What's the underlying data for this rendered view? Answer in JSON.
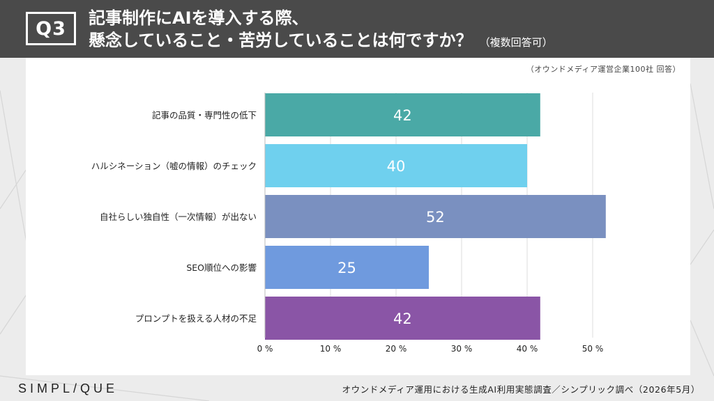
{
  "header": {
    "badge": "Q3",
    "title_line1": "記事制作にAIを導入する際、",
    "title_line2": "懸念していること・苦労していることは何ですか？",
    "note": "（複数回答可）"
  },
  "respondents": "（オウンドメディア運営企業100社 回答）",
  "chart_data": {
    "type": "bar",
    "orientation": "horizontal",
    "categories": [
      "記事の品質・専門性の低下",
      "ハルシネーション（嘘の情報）のチェック",
      "自社らしい独自性（一次情報）が出ない",
      "SEO順位への影響",
      "プロンプトを扱える人材の不足"
    ],
    "values": [
      42,
      40,
      52,
      25,
      42
    ],
    "value_labels": [
      "42",
      "40",
      "52",
      "25",
      "42"
    ],
    "bar_colors": [
      "#4aa9a6",
      "#6fd0ee",
      "#7a90c0",
      "#6f9ade",
      "#8a55a6"
    ],
    "xlim": [
      0,
      50
    ],
    "x_ticks": [
      0,
      10,
      20,
      30,
      40,
      50
    ],
    "x_tick_labels": [
      "0 %",
      "10 %",
      "20 %",
      "30 %",
      "40 %",
      "50 %"
    ],
    "grid": true
  },
  "footer": {
    "logo": "SIMPL/QUE",
    "source": "オウンドメディア運用における生成AI利用実態調査／シンプリック調べ（2026年5月）"
  }
}
